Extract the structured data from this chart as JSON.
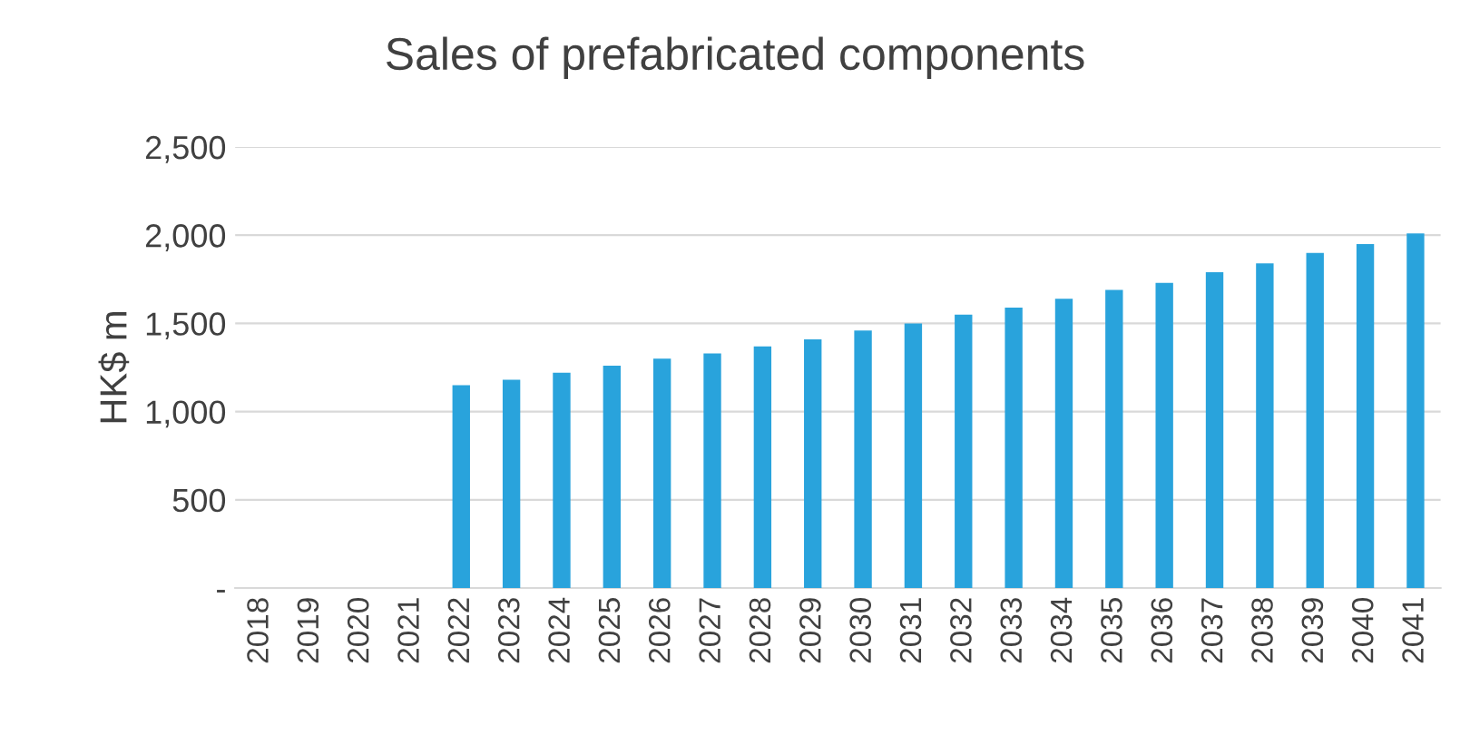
{
  "chart_data": {
    "type": "bar",
    "title": "Sales of prefabricated components",
    "ylabel": "HK$ m",
    "categories": [
      "2018",
      "2019",
      "2020",
      "2021",
      "2022",
      "2023",
      "2024",
      "2025",
      "2026",
      "2027",
      "2028",
      "2029",
      "2030",
      "2031",
      "2032",
      "2033",
      "2034",
      "2035",
      "2036",
      "2037",
      "2038",
      "2039",
      "2040",
      "2041"
    ],
    "values": [
      0,
      0,
      0,
      0,
      1150,
      1180,
      1220,
      1260,
      1300,
      1330,
      1370,
      1410,
      1460,
      1500,
      1550,
      1590,
      1640,
      1690,
      1730,
      1790,
      1840,
      1900,
      1950,
      2010
    ],
    "color": "#29a3dc",
    "ylim": [
      0,
      2500
    ],
    "yticks": [
      {
        "value": 0,
        "label": "-"
      },
      {
        "value": 500,
        "label": "500"
      },
      {
        "value": 1000,
        "label": "1,000"
      },
      {
        "value": 1500,
        "label": "1,500"
      },
      {
        "value": 2000,
        "label": "2,000"
      },
      {
        "value": 2500,
        "label": "2,500"
      }
    ],
    "grid": "y",
    "legend": false
  }
}
